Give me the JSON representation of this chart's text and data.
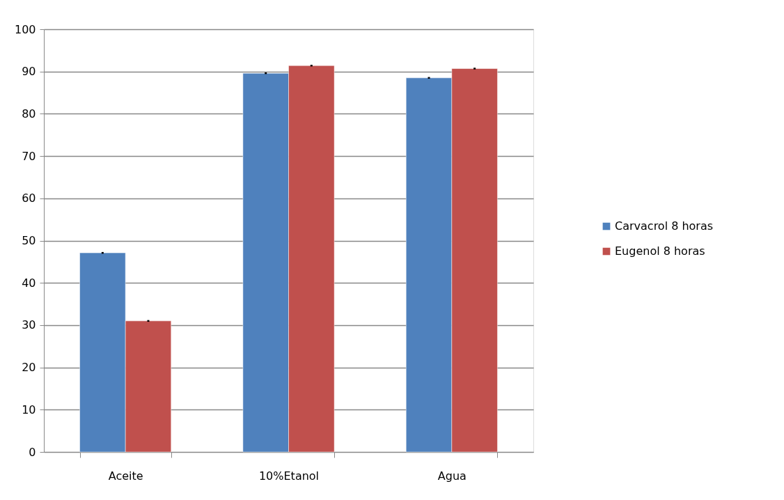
{
  "chart_data": {
    "type": "bar",
    "categories": [
      "Aceite",
      "10%Etanol",
      "Agua"
    ],
    "series": [
      {
        "name": "Carvacrol  8 horas",
        "color": "#4f81bd",
        "values": [
          47.1,
          89.6,
          88.5
        ],
        "errors": [
          0.2,
          0.2,
          0.2
        ]
      },
      {
        "name": "Eugenol 8 horas",
        "color": "#c0504d",
        "values": [
          31.0,
          91.4,
          90.7
        ],
        "errors": [
          0.2,
          0.2,
          0.2
        ]
      }
    ],
    "ylim": [
      0,
      100
    ],
    "yticks": [
      0,
      10,
      20,
      30,
      40,
      50,
      60,
      70,
      80,
      90,
      100
    ],
    "grid": "y",
    "legend": "right"
  }
}
